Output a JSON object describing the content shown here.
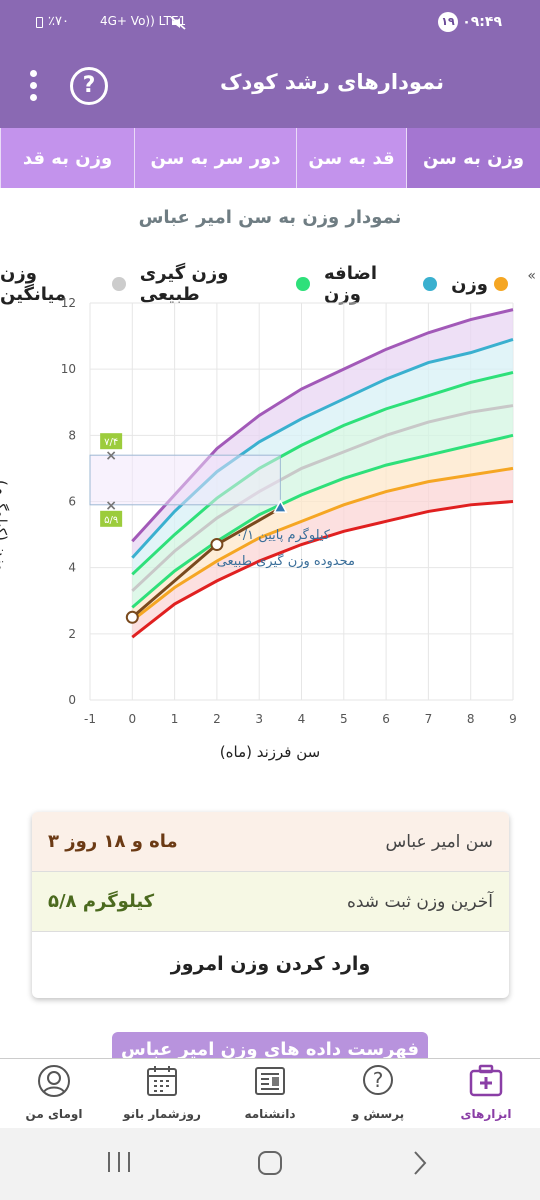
{
  "status_bar": {
    "time": "۰۹:۴۹",
    "notification_count": "۱۹",
    "battery": "٪۷۰",
    "network": "4G+ Vo)) LTE1"
  },
  "app_bar": {
    "title": "نمودارهای رشد کودک",
    "help_glyph": "?"
  },
  "tabs": [
    {
      "label": "وزن به سن",
      "active": true
    },
    {
      "label": "قد به سن",
      "active": false
    },
    {
      "label": "دور سر به سن",
      "active": false
    },
    {
      "label": "وزن به قد",
      "active": false
    }
  ],
  "chart_title": "نمودار وزن به سن امیر عباس",
  "legend": [
    {
      "label": "وزن",
      "color": "#f5a623"
    },
    {
      "label": "اضافه وزن",
      "color": "#3ab0cf"
    },
    {
      "label": "وزن گیری طبیعی",
      "color": "#2ee07a"
    },
    {
      "label": "وزن میانگین",
      "color": "#cccccc"
    }
  ],
  "legend_overflow": "«",
  "chart_data": {
    "type": "line",
    "xlabel": "سن فرزند (ماه)",
    "ylabel": "وزن (کیلوگرم)",
    "xlim": [
      -1,
      9
    ],
    "ylim": [
      0,
      12
    ],
    "x_ticks": [
      -1,
      0,
      1,
      2,
      3,
      4,
      5,
      6,
      7,
      8,
      9
    ],
    "y_ticks": [
      0,
      2,
      4,
      6,
      8,
      10,
      12
    ],
    "grid": true,
    "reference_curves": [
      {
        "name": "top",
        "color": "#a259b8",
        "x": [
          0,
          1,
          2,
          3,
          4,
          5,
          6,
          7,
          8,
          9
        ],
        "y": [
          4.8,
          6.2,
          7.6,
          8.6,
          9.4,
          10.0,
          10.6,
          11.1,
          11.5,
          11.8
        ]
      },
      {
        "name": "overweight",
        "color": "#3ab0cf",
        "x": [
          0,
          1,
          2,
          3,
          4,
          5,
          6,
          7,
          8,
          9
        ],
        "y": [
          4.3,
          5.7,
          6.9,
          7.8,
          8.5,
          9.1,
          9.7,
          10.2,
          10.5,
          10.9
        ]
      },
      {
        "name": "normal-high",
        "color": "#2ee07a",
        "x": [
          0,
          1,
          2,
          3,
          4,
          5,
          6,
          7,
          8,
          9
        ],
        "y": [
          3.8,
          5.0,
          6.1,
          7.0,
          7.7,
          8.3,
          8.8,
          9.2,
          9.6,
          9.9
        ]
      },
      {
        "name": "average",
        "color": "#c8c8c8",
        "x": [
          0,
          1,
          2,
          3,
          4,
          5,
          6,
          7,
          8,
          9
        ],
        "y": [
          3.3,
          4.5,
          5.5,
          6.3,
          7.0,
          7.5,
          8.0,
          8.4,
          8.7,
          8.9
        ]
      },
      {
        "name": "normal-low",
        "color": "#2ee07a",
        "x": [
          0,
          1,
          2,
          3,
          4,
          5,
          6,
          7,
          8,
          9
        ],
        "y": [
          2.8,
          3.9,
          4.8,
          5.6,
          6.2,
          6.7,
          7.1,
          7.4,
          7.7,
          8.0
        ]
      },
      {
        "name": "underweight",
        "color": "#f5a623",
        "x": [
          0,
          1,
          2,
          3,
          4,
          5,
          6,
          7,
          8,
          9
        ],
        "y": [
          2.4,
          3.4,
          4.2,
          4.9,
          5.4,
          5.9,
          6.3,
          6.6,
          6.8,
          7.0
        ]
      },
      {
        "name": "bottom",
        "color": "#e02020",
        "x": [
          0,
          1,
          2,
          3,
          4,
          5,
          6,
          7,
          8,
          9
        ],
        "y": [
          1.9,
          2.9,
          3.6,
          4.2,
          4.7,
          5.1,
          5.4,
          5.7,
          5.9,
          6.0
        ]
      }
    ],
    "measurements": {
      "color": "#7a4a1e",
      "x": [
        0,
        2,
        3.5
      ],
      "y": [
        2.5,
        4.7,
        5.8
      ]
    },
    "range_markers": [
      {
        "value": 7.4,
        "label": "۷/۴"
      },
      {
        "value": 5.9,
        "label": "۵/۹"
      }
    ],
    "range_box": {
      "x": [
        -1,
        3.5
      ],
      "y": [
        5.9,
        7.4
      ]
    },
    "annotation": {
      "line1": "۰/۱ کیلوگرم پایین",
      "line2": "محدوده وزن گیری طبیعی"
    }
  },
  "info_card": {
    "age_label": "سن امیر عباس",
    "age_value": "۳ ماه و ۱۸ روز",
    "weight_label": "آخرین وزن ثبت شده",
    "weight_value": "۵/۸ کیلوگرم",
    "action_label": "وارد کردن وزن امروز"
  },
  "list_button_label": "فهرست داده های وزن امیر عباس",
  "bottom_nav": [
    {
      "label": "ابزارهای",
      "icon": "medkit-icon",
      "active": true
    },
    {
      "label": "پرسش و",
      "icon": "question-bubble-icon",
      "active": false
    },
    {
      "label": "دانشنامه",
      "icon": "newspaper-icon",
      "active": false
    },
    {
      "label": "روزشمار بانو",
      "icon": "calendar-icon",
      "active": false
    },
    {
      "label": "اومای من",
      "icon": "woman-avatar-icon",
      "active": false
    }
  ]
}
